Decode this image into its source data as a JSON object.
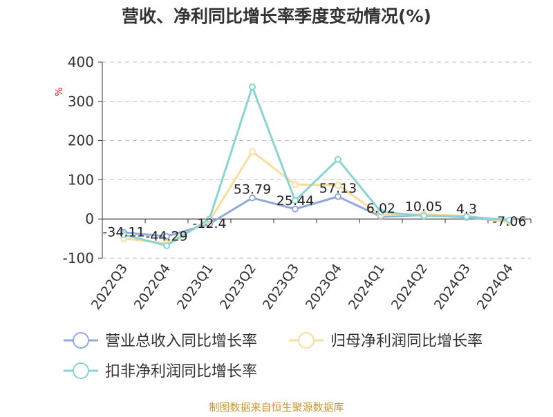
{
  "chart_data": {
    "type": "line",
    "title": "营收、净利同比增长率季度变动情况(%)",
    "ylabel": "%",
    "categories": [
      "2022Q3",
      "2022Q4",
      "2023Q1",
      "2023Q2",
      "2023Q3",
      "2023Q4",
      "2024Q1",
      "2024Q2",
      "2024Q3",
      "2024Q4"
    ],
    "ylim": [
      -100,
      400
    ],
    "yticks": [
      -100,
      0,
      100,
      200,
      300,
      400
    ],
    "grid": true,
    "legend_position": "bottom",
    "series": [
      {
        "name": "营业总收入同比增长率",
        "color": "#8fa9d8",
        "values": [
          -34.11,
          -44.29,
          -12.4,
          53.79,
          25.44,
          57.13,
          6.02,
          10.05,
          4.3,
          -7.06
        ],
        "data_labels": [
          "-34.11",
          "-44.29",
          "-12.4",
          "53.79",
          "25.44",
          "57.13",
          "6.02",
          "10.05",
          "4.3",
          "-7.06"
        ]
      },
      {
        "name": "归母净利润同比增长率",
        "color": "#fbdc9c",
        "values": [
          -50,
          -62,
          -5,
          172,
          88,
          86,
          10,
          12,
          8,
          -8
        ]
      },
      {
        "name": "扣非净利润同比增长率",
        "color": "#88d4d4",
        "values": [
          -40,
          -68,
          0,
          337,
          47,
          152,
          18,
          8,
          6,
          -3
        ]
      }
    ],
    "source": "制图数据来自恒生聚源数据库"
  }
}
